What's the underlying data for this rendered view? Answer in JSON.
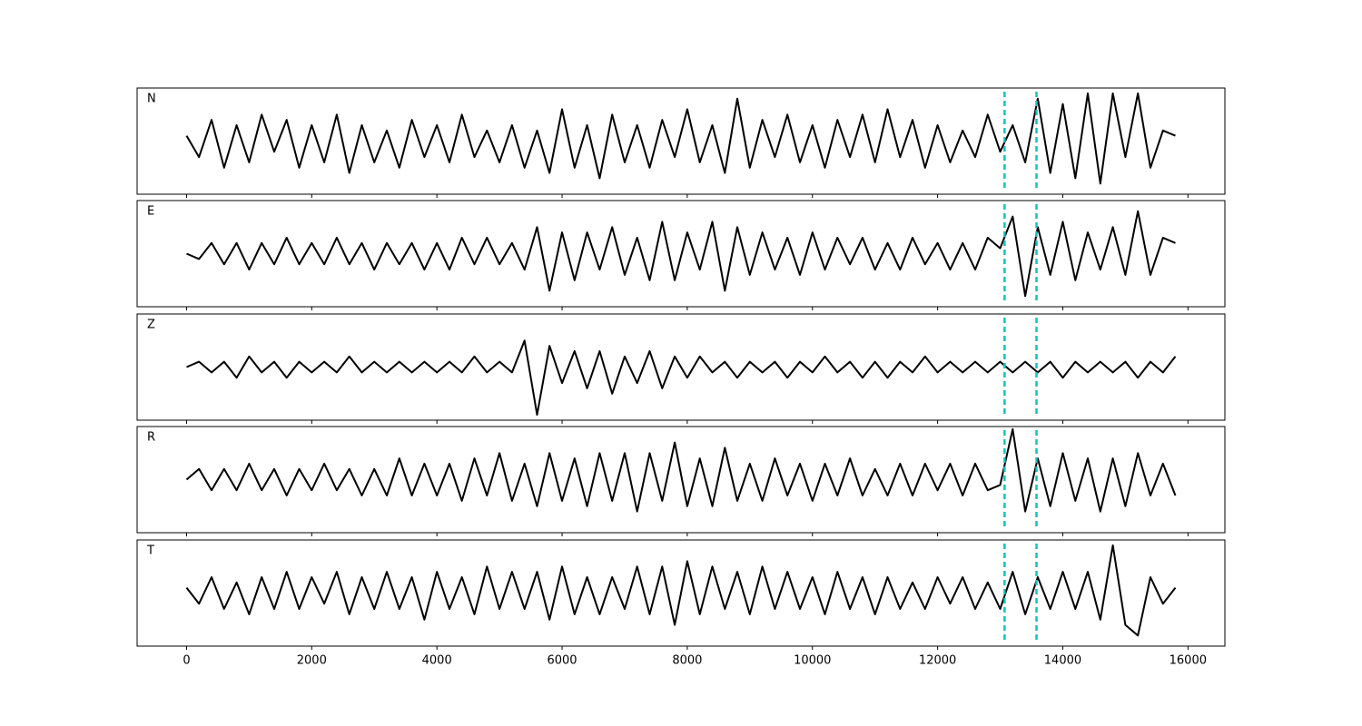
{
  "chart_data": [
    {
      "type": "line",
      "label": "N",
      "color": "#000000",
      "xlim": [
        -790,
        16590
      ],
      "ylim": [
        -1,
        1
      ],
      "xticks": [
        0,
        2000,
        4000,
        6000,
        8000,
        10000,
        12000,
        14000,
        16000
      ],
      "vlines": [
        13070,
        13580
      ],
      "vline_color": "#17bfbf",
      "x": [
        0,
        200,
        400,
        600,
        800,
        1000,
        1200,
        1400,
        1600,
        1800,
        2000,
        2200,
        2400,
        2600,
        2800,
        3000,
        3200,
        3400,
        3600,
        3800,
        4000,
        4200,
        4400,
        4600,
        4800,
        5000,
        5200,
        5400,
        5600,
        5800,
        6000,
        6200,
        6400,
        6600,
        6800,
        7000,
        7200,
        7400,
        7600,
        7800,
        8000,
        8200,
        8400,
        8600,
        8800,
        9000,
        9200,
        9400,
        9600,
        9800,
        10000,
        10200,
        10400,
        10600,
        10800,
        11000,
        11200,
        11400,
        11600,
        11800,
        12000,
        12200,
        12400,
        12600,
        12800,
        13000,
        13200,
        13400,
        13600,
        13800,
        14000,
        14200,
        14400,
        14600,
        14800,
        15000,
        15200,
        15400,
        15600,
        15800
      ],
      "values": [
        0.1,
        -0.3,
        0.4,
        -0.5,
        0.3,
        -0.4,
        0.5,
        -0.2,
        0.4,
        -0.5,
        0.3,
        -0.4,
        0.5,
        -0.6,
        0.3,
        -0.4,
        0.2,
        -0.5,
        0.4,
        -0.3,
        0.3,
        -0.4,
        0.5,
        -0.3,
        0.2,
        -0.4,
        0.3,
        -0.5,
        0.2,
        -0.6,
        0.6,
        -0.5,
        0.3,
        -0.7,
        0.5,
        -0.4,
        0.3,
        -0.5,
        0.4,
        -0.3,
        0.6,
        -0.4,
        0.3,
        -0.6,
        0.8,
        -0.5,
        0.4,
        -0.3,
        0.5,
        -0.4,
        0.3,
        -0.5,
        0.4,
        -0.3,
        0.5,
        -0.4,
        0.6,
        -0.3,
        0.4,
        -0.5,
        0.3,
        -0.4,
        0.2,
        -0.3,
        0.5,
        -0.2,
        0.3,
        -0.4,
        0.8,
        -0.6,
        0.7,
        -0.7,
        0.9,
        -0.8,
        0.9,
        -0.3,
        0.9,
        -0.5,
        0.2,
        0.1
      ]
    },
    {
      "type": "line",
      "label": "E",
      "color": "#000000",
      "xlim": [
        -790,
        16590
      ],
      "ylim": [
        -1,
        1
      ],
      "xticks": [
        0,
        2000,
        4000,
        6000,
        8000,
        10000,
        12000,
        14000,
        16000
      ],
      "vlines": [
        13070,
        13580
      ],
      "vline_color": "#17bfbf",
      "x": [
        0,
        200,
        400,
        600,
        800,
        1000,
        1200,
        1400,
        1600,
        1800,
        2000,
        2200,
        2400,
        2600,
        2800,
        3000,
        3200,
        3400,
        3600,
        3800,
        4000,
        4200,
        4400,
        4600,
        4800,
        5000,
        5200,
        5400,
        5600,
        5800,
        6000,
        6200,
        6400,
        6600,
        6800,
        7000,
        7200,
        7400,
        7600,
        7800,
        8000,
        8200,
        8400,
        8600,
        8800,
        9000,
        9200,
        9400,
        9600,
        9800,
        10000,
        10200,
        10400,
        10600,
        10800,
        11000,
        11200,
        11400,
        11600,
        11800,
        12000,
        12200,
        12400,
        12600,
        12800,
        13000,
        13200,
        13400,
        13600,
        13800,
        14000,
        14200,
        14400,
        14600,
        14800,
        15000,
        15200,
        15400,
        15600,
        15800
      ],
      "values": [
        0,
        -0.1,
        0.2,
        -0.2,
        0.2,
        -0.3,
        0.2,
        -0.2,
        0.3,
        -0.2,
        0.2,
        -0.2,
        0.3,
        -0.2,
        0.2,
        -0.3,
        0.2,
        -0.2,
        0.2,
        -0.3,
        0.2,
        -0.3,
        0.3,
        -0.2,
        0.3,
        -0.2,
        0.2,
        -0.3,
        0.5,
        -0.7,
        0.4,
        -0.5,
        0.4,
        -0.3,
        0.5,
        -0.4,
        0.3,
        -0.5,
        0.6,
        -0.5,
        0.4,
        -0.3,
        0.6,
        -0.7,
        0.5,
        -0.4,
        0.4,
        -0.3,
        0.3,
        -0.4,
        0.4,
        -0.3,
        0.3,
        -0.2,
        0.3,
        -0.3,
        0.2,
        -0.3,
        0.3,
        -0.2,
        0.2,
        -0.3,
        0.2,
        -0.3,
        0.3,
        0.1,
        0.7,
        -0.8,
        0.5,
        -0.4,
        0.6,
        -0.5,
        0.4,
        -0.3,
        0.5,
        -0.4,
        0.8,
        -0.4,
        0.3,
        0.2
      ]
    },
    {
      "type": "line",
      "label": "Z",
      "color": "#000000",
      "xlim": [
        -790,
        16590
      ],
      "ylim": [
        -1,
        1
      ],
      "xticks": [
        0,
        2000,
        4000,
        6000,
        8000,
        10000,
        12000,
        14000,
        16000
      ],
      "vlines": [
        13070,
        13580
      ],
      "vline_color": "#17bfbf",
      "x": [
        0,
        200,
        400,
        600,
        800,
        1000,
        1200,
        1400,
        1600,
        1800,
        2000,
        2200,
        2400,
        2600,
        2800,
        3000,
        3200,
        3400,
        3600,
        3800,
        4000,
        4200,
        4400,
        4600,
        4800,
        5000,
        5200,
        5400,
        5600,
        5800,
        6000,
        6200,
        6400,
        6600,
        6800,
        7000,
        7200,
        7400,
        7600,
        7800,
        8000,
        8200,
        8400,
        8600,
        8800,
        9000,
        9200,
        9400,
        9600,
        9800,
        10000,
        10200,
        10400,
        10600,
        10800,
        11000,
        11200,
        11400,
        11600,
        11800,
        12000,
        12200,
        12400,
        12600,
        12800,
        13000,
        13200,
        13400,
        13600,
        13800,
        14000,
        14200,
        14400,
        14600,
        14800,
        15000,
        15200,
        15400,
        15600,
        15800
      ],
      "values": [
        0,
        0.1,
        -0.1,
        0.1,
        -0.2,
        0.2,
        -0.1,
        0.1,
        -0.2,
        0.1,
        -0.1,
        0.1,
        -0.1,
        0.2,
        -0.1,
        0.1,
        -0.1,
        0.1,
        -0.1,
        0.1,
        -0.1,
        0.1,
        -0.1,
        0.2,
        -0.1,
        0.1,
        -0.1,
        0.5,
        -0.9,
        0.4,
        -0.3,
        0.3,
        -0.4,
        0.3,
        -0.5,
        0.2,
        -0.3,
        0.3,
        -0.4,
        0.2,
        -0.2,
        0.2,
        -0.1,
        0.1,
        -0.2,
        0.1,
        -0.1,
        0.1,
        -0.2,
        0.1,
        -0.1,
        0.2,
        -0.1,
        0.1,
        -0.2,
        0.1,
        -0.2,
        0.1,
        -0.1,
        0.2,
        -0.1,
        0.1,
        -0.1,
        0.1,
        -0.1,
        0.1,
        -0.1,
        0.1,
        -0.1,
        0.1,
        -0.2,
        0.1,
        -0.1,
        0.1,
        -0.1,
        0.1,
        -0.2,
        0.1,
        -0.1,
        0.2
      ]
    },
    {
      "type": "line",
      "label": "R",
      "color": "#000000",
      "xlim": [
        -790,
        16590
      ],
      "ylim": [
        -1,
        1
      ],
      "xticks": [
        0,
        2000,
        4000,
        6000,
        8000,
        10000,
        12000,
        14000,
        16000
      ],
      "vlines": [
        13070,
        13580
      ],
      "vline_color": "#17bfbf",
      "x": [
        0,
        200,
        400,
        600,
        800,
        1000,
        1200,
        1400,
        1600,
        1800,
        2000,
        2200,
        2400,
        2600,
        2800,
        3000,
        3200,
        3400,
        3600,
        3800,
        4000,
        4200,
        4400,
        4600,
        4800,
        5000,
        5200,
        5400,
        5600,
        5800,
        6000,
        6200,
        6400,
        6600,
        6800,
        7000,
        7200,
        7400,
        7600,
        7800,
        8000,
        8200,
        8400,
        8600,
        8800,
        9000,
        9200,
        9400,
        9600,
        9800,
        10000,
        10200,
        10400,
        10600,
        10800,
        11000,
        11200,
        11400,
        11600,
        11800,
        12000,
        12200,
        12400,
        12600,
        12800,
        13000,
        13200,
        13400,
        13600,
        13800,
        14000,
        14200,
        14400,
        14600,
        14800,
        15000,
        15200,
        15400,
        15600,
        15800
      ],
      "values": [
        0,
        0.2,
        -0.2,
        0.2,
        -0.2,
        0.3,
        -0.2,
        0.2,
        -0.3,
        0.2,
        -0.2,
        0.3,
        -0.2,
        0.2,
        -0.3,
        0.2,
        -0.3,
        0.4,
        -0.3,
        0.3,
        -0.3,
        0.3,
        -0.4,
        0.4,
        -0.3,
        0.5,
        -0.4,
        0.3,
        -0.5,
        0.5,
        -0.4,
        0.4,
        -0.5,
        0.5,
        -0.4,
        0.5,
        -0.6,
        0.5,
        -0.4,
        0.7,
        -0.5,
        0.4,
        -0.5,
        0.6,
        -0.4,
        0.3,
        -0.4,
        0.4,
        -0.3,
        0.3,
        -0.4,
        0.3,
        -0.3,
        0.4,
        -0.3,
        0.2,
        -0.3,
        0.3,
        -0.3,
        0.3,
        -0.2,
        0.3,
        -0.3,
        0.3,
        -0.2,
        -0.1,
        0.95,
        -0.6,
        0.4,
        -0.5,
        0.5,
        -0.4,
        0.4,
        -0.6,
        0.4,
        -0.5,
        0.5,
        -0.3,
        0.3,
        -0.3
      ]
    },
    {
      "type": "line",
      "label": "T",
      "color": "#000000",
      "xlim": [
        -790,
        16590
      ],
      "ylim": [
        -1,
        1
      ],
      "xticks": [
        0,
        2000,
        4000,
        6000,
        8000,
        10000,
        12000,
        14000,
        16000
      ],
      "vlines": [
        13070,
        13580
      ],
      "vline_color": "#17bfbf",
      "x": [
        0,
        200,
        400,
        600,
        800,
        1000,
        1200,
        1400,
        1600,
        1800,
        2000,
        2200,
        2400,
        2600,
        2800,
        3000,
        3200,
        3400,
        3600,
        3800,
        4000,
        4200,
        4400,
        4600,
        4800,
        5000,
        5200,
        5400,
        5600,
        5800,
        6000,
        6200,
        6400,
        6600,
        6800,
        7000,
        7200,
        7400,
        7600,
        7800,
        8000,
        8200,
        8400,
        8600,
        8800,
        9000,
        9200,
        9400,
        9600,
        9800,
        10000,
        10200,
        10400,
        10600,
        10800,
        11000,
        11200,
        11400,
        11600,
        11800,
        12000,
        12200,
        12400,
        12600,
        12800,
        13000,
        13200,
        13400,
        13600,
        13800,
        14000,
        14200,
        14400,
        14600,
        14800,
        15000,
        15200,
        15400,
        15600,
        15800
      ],
      "values": [
        0.1,
        -0.2,
        0.3,
        -0.3,
        0.2,
        -0.4,
        0.3,
        -0.3,
        0.4,
        -0.3,
        0.3,
        -0.2,
        0.4,
        -0.4,
        0.3,
        -0.3,
        0.4,
        -0.3,
        0.3,
        -0.5,
        0.4,
        -0.3,
        0.3,
        -0.4,
        0.5,
        -0.3,
        0.4,
        -0.3,
        0.4,
        -0.5,
        0.5,
        -0.4,
        0.3,
        -0.4,
        0.3,
        -0.3,
        0.5,
        -0.4,
        0.5,
        -0.6,
        0.6,
        -0.4,
        0.5,
        -0.3,
        0.4,
        -0.4,
        0.5,
        -0.3,
        0.4,
        -0.3,
        0.3,
        -0.4,
        0.4,
        -0.3,
        0.3,
        -0.4,
        0.3,
        -0.3,
        0.2,
        -0.3,
        0.3,
        -0.2,
        0.3,
        -0.3,
        0.2,
        -0.3,
        0.4,
        -0.4,
        0.3,
        -0.3,
        0.4,
        -0.3,
        0.4,
        -0.5,
        0.9,
        -0.6,
        -0.8,
        0.3,
        -0.2,
        0.1
      ]
    }
  ]
}
